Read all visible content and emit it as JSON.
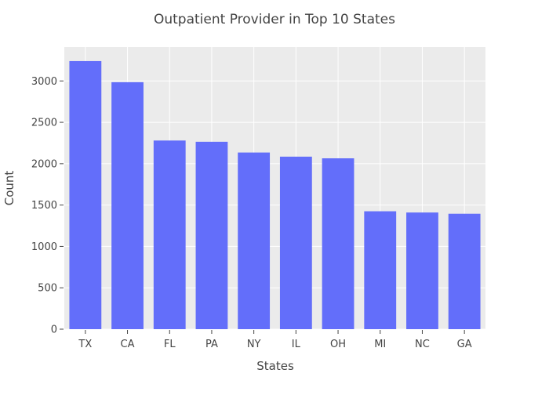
{
  "chart_data": {
    "type": "bar",
    "title": "Outpatient Provider in Top 10 States",
    "xlabel": "States",
    "ylabel": "Count",
    "categories": [
      "TX",
      "CA",
      "FL",
      "PA",
      "NY",
      "IL",
      "OH",
      "MI",
      "NC",
      "GA"
    ],
    "values": [
      3240,
      2985,
      2280,
      2265,
      2135,
      2085,
      2065,
      1425,
      1410,
      1395
    ],
    "ylim": [
      0,
      3410
    ],
    "yticks": [
      0,
      500,
      1000,
      1500,
      2000,
      2500,
      3000
    ],
    "grid": true,
    "legend": "none",
    "colors": {
      "bar": "#636efa",
      "plot_background": "#ebebeb",
      "grid": "#ffffff",
      "text": "#444444"
    }
  }
}
